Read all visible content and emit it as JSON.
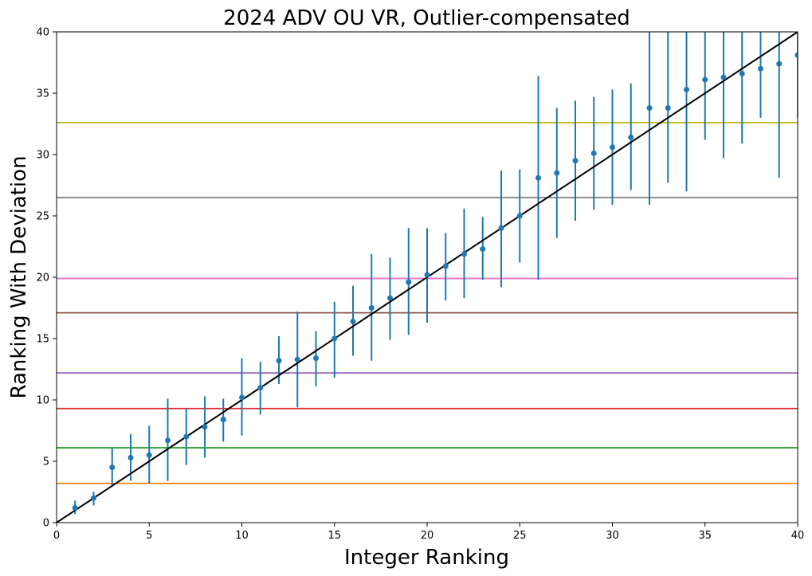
{
  "chart_data": {
    "type": "scatter",
    "title": "2024 ADV OU VR, Outlier-compensated",
    "xlabel": "Integer Ranking",
    "ylabel": "Ranking With Deviation",
    "xlim": [
      0,
      40
    ],
    "ylim": [
      0,
      40
    ],
    "xticks": [
      0,
      5,
      10,
      15,
      20,
      25,
      30,
      35,
      40
    ],
    "yticks": [
      0,
      5,
      10,
      15,
      20,
      25,
      30,
      35,
      40
    ],
    "grid": false,
    "legend": "none",
    "series": [
      {
        "type": "errorbar",
        "color": "#1f77b4",
        "points": [
          {
            "x": 1,
            "y": 1.2,
            "low": 0.7,
            "high": 1.8
          },
          {
            "x": 2,
            "y": 2.0,
            "low": 1.4,
            "high": 2.5
          },
          {
            "x": 3,
            "y": 4.5,
            "low": 2.9,
            "high": 6.1
          },
          {
            "x": 4,
            "y": 5.3,
            "low": 3.4,
            "high": 7.2
          },
          {
            "x": 5,
            "y": 5.5,
            "low": 3.2,
            "high": 7.9
          },
          {
            "x": 6,
            "y": 6.7,
            "low": 3.4,
            "high": 10.1
          },
          {
            "x": 7,
            "y": 7.0,
            "low": 4.7,
            "high": 9.3
          },
          {
            "x": 8,
            "y": 7.8,
            "low": 5.3,
            "high": 10.3
          },
          {
            "x": 9,
            "y": 8.4,
            "low": 6.6,
            "high": 10.1
          },
          {
            "x": 10,
            "y": 10.2,
            "low": 7.1,
            "high": 13.4
          },
          {
            "x": 11,
            "y": 11.0,
            "low": 8.8,
            "high": 13.1
          },
          {
            "x": 12,
            "y": 13.2,
            "low": 11.3,
            "high": 15.2
          },
          {
            "x": 13,
            "y": 13.3,
            "low": 9.4,
            "high": 17.2
          },
          {
            "x": 14,
            "y": 13.4,
            "low": 11.1,
            "high": 15.6
          },
          {
            "x": 15,
            "y": 15.0,
            "low": 11.8,
            "high": 18.0
          },
          {
            "x": 16,
            "y": 16.4,
            "low": 13.6,
            "high": 19.3
          },
          {
            "x": 17,
            "y": 17.5,
            "low": 13.2,
            "high": 21.9
          },
          {
            "x": 18,
            "y": 18.3,
            "low": 14.9,
            "high": 21.6
          },
          {
            "x": 19,
            "y": 19.6,
            "low": 15.3,
            "high": 24.0
          },
          {
            "x": 20,
            "y": 20.2,
            "low": 16.3,
            "high": 24.0
          },
          {
            "x": 21,
            "y": 20.9,
            "low": 18.1,
            "high": 23.6
          },
          {
            "x": 22,
            "y": 21.9,
            "low": 18.3,
            "high": 25.6
          },
          {
            "x": 23,
            "y": 22.3,
            "low": 19.8,
            "high": 24.9
          },
          {
            "x": 24,
            "y": 24.0,
            "low": 19.2,
            "high": 28.7
          },
          {
            "x": 25,
            "y": 25.0,
            "low": 21.2,
            "high": 28.8
          },
          {
            "x": 26,
            "y": 28.1,
            "low": 19.8,
            "high": 36.4
          },
          {
            "x": 27,
            "y": 28.5,
            "low": 23.2,
            "high": 33.8
          },
          {
            "x": 28,
            "y": 29.5,
            "low": 24.6,
            "high": 34.4
          },
          {
            "x": 29,
            "y": 30.1,
            "low": 25.5,
            "high": 34.7
          },
          {
            "x": 30,
            "y": 30.6,
            "low": 25.9,
            "high": 35.3
          },
          {
            "x": 31,
            "y": 31.4,
            "low": 27.1,
            "high": 35.8
          },
          {
            "x": 32,
            "y": 33.8,
            "low": 25.9,
            "high": 41.7
          },
          {
            "x": 33,
            "y": 33.8,
            "low": 27.7,
            "high": 40.0
          },
          {
            "x": 34,
            "y": 35.3,
            "low": 27.0,
            "high": 43.6
          },
          {
            "x": 35,
            "y": 36.1,
            "low": 31.2,
            "high": 41.0
          },
          {
            "x": 36,
            "y": 36.3,
            "low": 29.7,
            "high": 42.9
          },
          {
            "x": 37,
            "y": 36.6,
            "low": 30.9,
            "high": 42.3
          },
          {
            "x": 38,
            "y": 37.0,
            "low": 33.0,
            "high": 41.0
          },
          {
            "x": 39,
            "y": 37.4,
            "low": 28.1,
            "high": 46.7
          },
          {
            "x": 40,
            "y": 38.1,
            "low": 33.0,
            "high": 43.2
          }
        ]
      }
    ],
    "reference_line": {
      "from": [
        0,
        0
      ],
      "to": [
        40,
        40
      ],
      "color": "#000000"
    },
    "horizontal_lines": [
      {
        "y": 3.2,
        "color": "#ff7f0e"
      },
      {
        "y": 6.1,
        "color": "#2ca02c"
      },
      {
        "y": 9.3,
        "color": "#d62728"
      },
      {
        "y": 12.2,
        "color": "#9467bd"
      },
      {
        "y": 17.1,
        "color": "#8c564b"
      },
      {
        "y": 19.9,
        "color": "#e377c2"
      },
      {
        "y": 26.5,
        "color": "#7f7f7f"
      },
      {
        "y": 32.6,
        "color": "#bcbd22"
      }
    ]
  }
}
